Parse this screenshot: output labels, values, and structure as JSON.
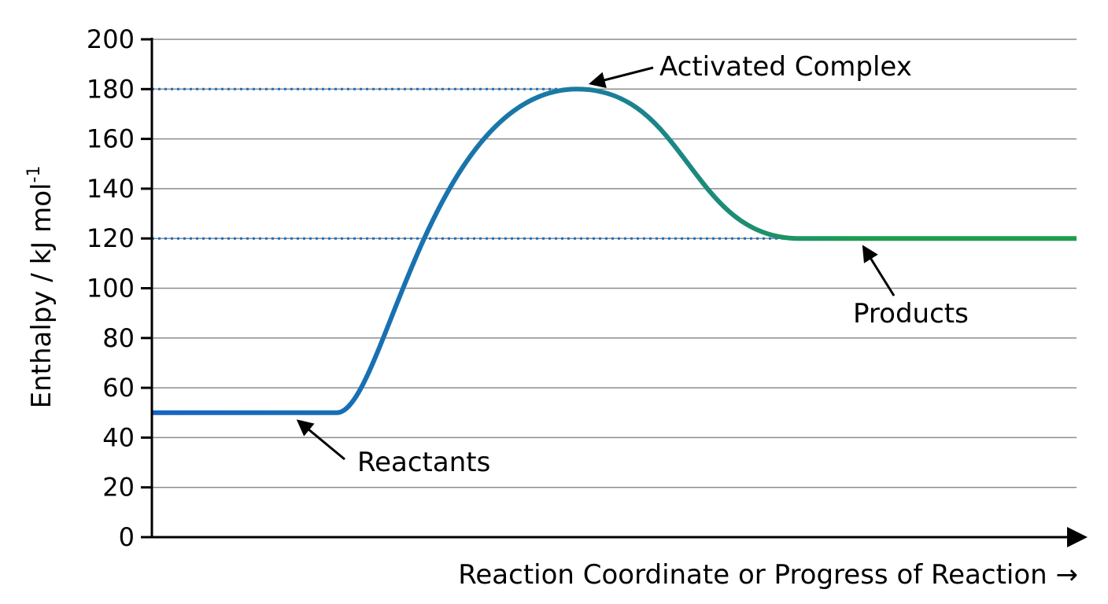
{
  "chart_data": {
    "type": "line",
    "title": "",
    "xlabel": "Reaction Coordinate or Progress of Reaction →",
    "ylabel": "Enthalpy / kJ mol",
    "ylabel_superscript": "-1",
    "ylim": [
      0,
      200
    ],
    "yticks": [
      0,
      20,
      40,
      60,
      80,
      100,
      120,
      140,
      160,
      180,
      200
    ],
    "grid": true,
    "series": [
      {
        "color_start": "#1565c0",
        "color_end": "#1e9e4a",
        "points": [
          {
            "progress": 0.0,
            "enthalpy": 50
          },
          {
            "progress": 0.2,
            "enthalpy": 50
          },
          {
            "progress": 0.46,
            "enthalpy": 180
          },
          {
            "progress": 0.7,
            "enthalpy": 120
          },
          {
            "progress": 1.0,
            "enthalpy": 120
          }
        ]
      }
    ],
    "reference_lines": [
      {
        "enthalpy": 180,
        "style": "dotted",
        "color": "#1a6fc4"
      },
      {
        "enthalpy": 120,
        "style": "dotted",
        "color": "#1a6fc4"
      }
    ],
    "annotations": [
      {
        "text": "Activated Complex",
        "enthalpy": 180
      },
      {
        "text": "Products",
        "enthalpy": 120
      },
      {
        "text": "Reactants",
        "enthalpy": 50
      }
    ]
  }
}
